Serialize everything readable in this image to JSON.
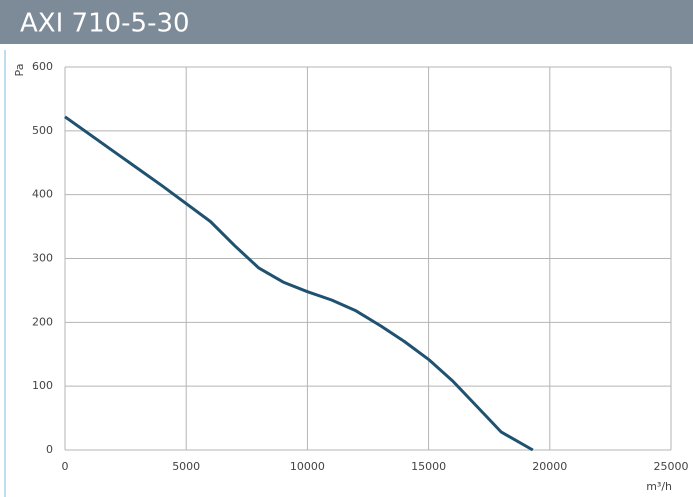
{
  "chart_data": {
    "type": "line",
    "title": "AXI 710-5-30",
    "xlabel": "m³/h",
    "ylabel": "Pa",
    "x": [
      0,
      2000,
      4000,
      6000,
      7000,
      8000,
      9000,
      10000,
      11000,
      12000,
      13000,
      14000,
      15000,
      16000,
      17000,
      18000,
      19300
    ],
    "series": [
      {
        "name": "AXI 710-5-30",
        "color": "#1e5270",
        "values": [
          522,
          468,
          414,
          358,
          320,
          285,
          263,
          248,
          235,
          218,
          195,
          170,
          142,
          108,
          68,
          28,
          0
        ]
      }
    ],
    "xlim": [
      0,
      25000
    ],
    "xticks": [
      0,
      5000,
      10000,
      15000,
      20000,
      25000
    ],
    "ylim": [
      0,
      600
    ],
    "yticks": [
      0,
      100,
      200,
      300,
      400,
      500,
      600
    ],
    "grid": true
  }
}
